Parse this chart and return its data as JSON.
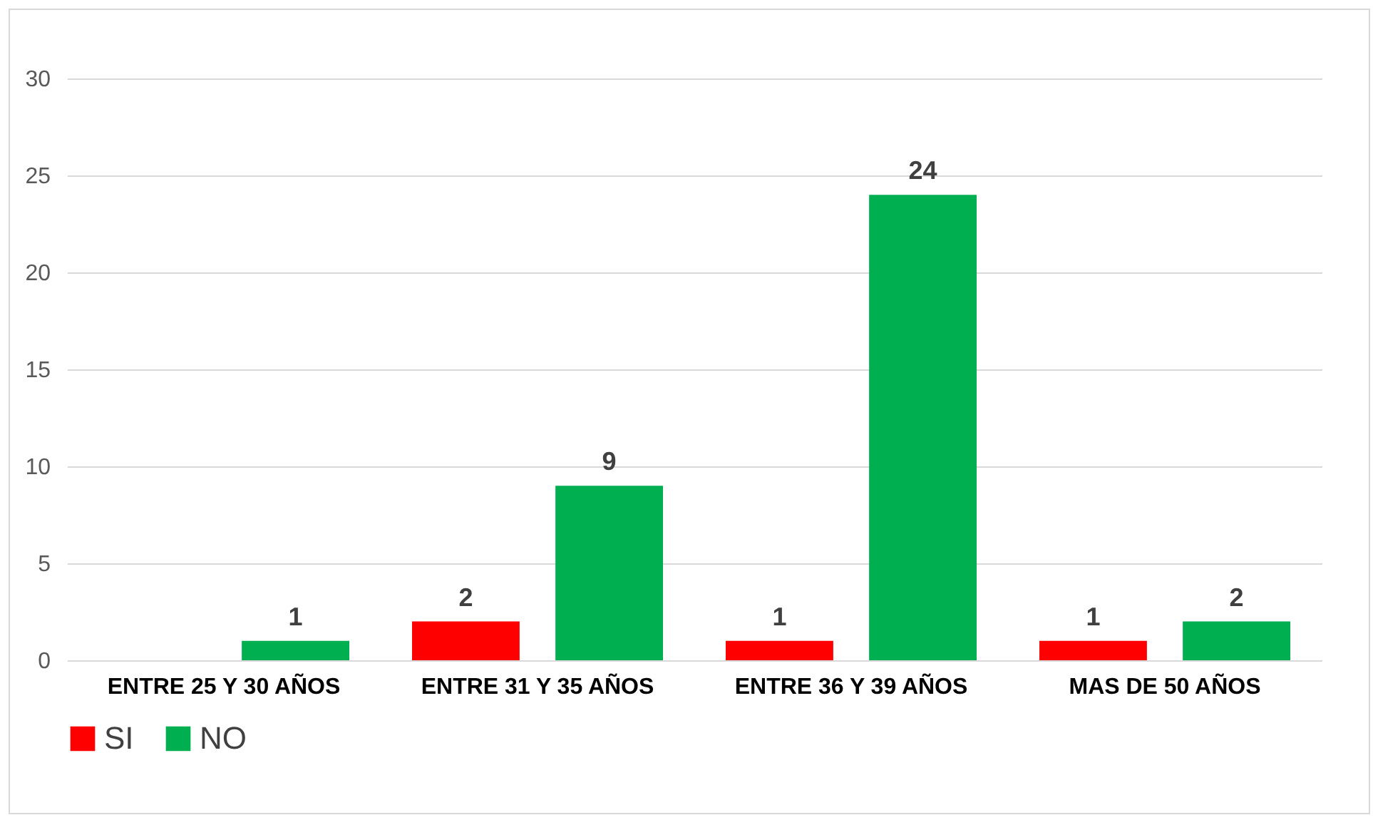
{
  "chart_data": {
    "type": "bar",
    "categories": [
      "ENTRE 25 Y 30 AÑOS",
      "ENTRE 31 Y 35 AÑOS",
      "ENTRE 36 Y 39 AÑOS",
      "MAS DE 50 AÑOS"
    ],
    "series": [
      {
        "name": "SI",
        "color": "#ff0000",
        "values": [
          null,
          2,
          1,
          1
        ]
      },
      {
        "name": "NO",
        "color": "#00b050",
        "values": [
          1,
          9,
          24,
          2
        ]
      }
    ],
    "ylim": [
      0,
      30
    ],
    "yticks": [
      0,
      5,
      10,
      15,
      20,
      25,
      30
    ],
    "grid": "y",
    "legend": "bottom",
    "data_labels": true
  }
}
